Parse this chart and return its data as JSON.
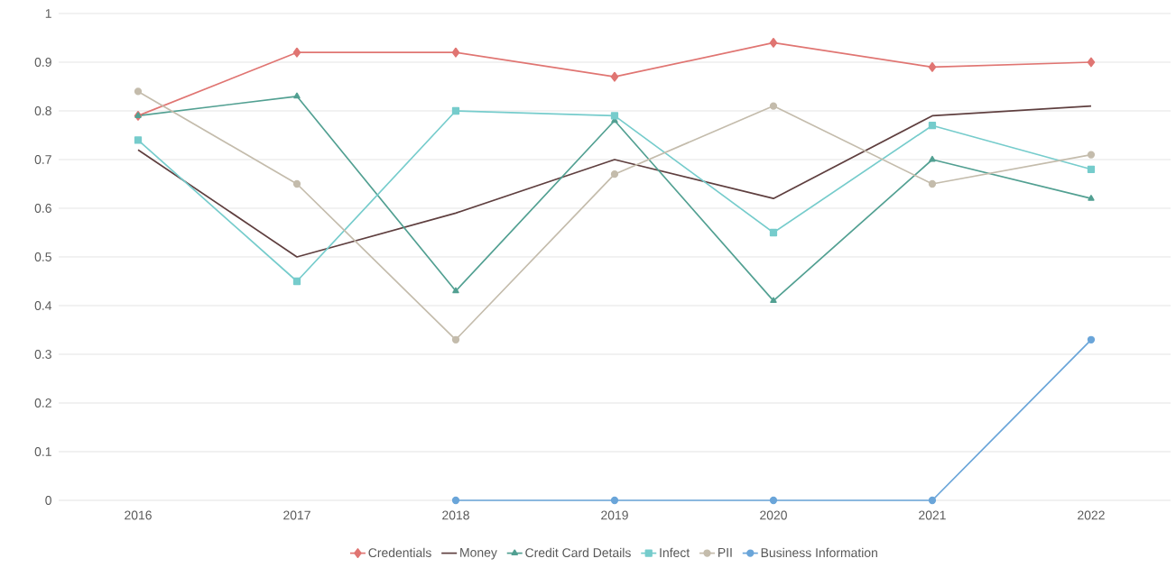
{
  "chart_data": {
    "type": "line",
    "categories": [
      "2016",
      "2017",
      "2018",
      "2019",
      "2020",
      "2021",
      "2022"
    ],
    "series": [
      {
        "name": "Credentials",
        "color": "#e07572",
        "marker": "diamond",
        "values": [
          0.79,
          0.92,
          0.92,
          0.87,
          0.94,
          0.89,
          0.9
        ]
      },
      {
        "name": "Money",
        "color": "#5f3f3f",
        "marker": "none",
        "values": [
          0.72,
          0.5,
          0.59,
          0.7,
          0.62,
          0.79,
          0.81
        ]
      },
      {
        "name": "Credit Card Details",
        "color": "#52a092",
        "marker": "triangle",
        "values": [
          0.79,
          0.83,
          0.43,
          0.78,
          0.41,
          0.7,
          0.62
        ]
      },
      {
        "name": "Infect",
        "color": "#76cccc",
        "marker": "square",
        "values": [
          0.74,
          0.45,
          0.8,
          0.79,
          0.55,
          0.77,
          0.68
        ]
      },
      {
        "name": "PII",
        "color": "#c4bcac",
        "marker": "circle",
        "values": [
          0.84,
          0.65,
          0.33,
          0.67,
          0.81,
          0.65,
          0.71
        ]
      },
      {
        "name": "Business Information",
        "color": "#6aa5d9",
        "marker": "circle",
        "values": [
          null,
          null,
          0,
          0,
          0,
          0,
          0.33
        ]
      }
    ],
    "ylim": [
      0,
      1
    ],
    "yticks": [
      0,
      0.1,
      0.2,
      0.3,
      0.4,
      0.5,
      0.6,
      0.7,
      0.8,
      0.9,
      1
    ],
    "grid": "y",
    "legend": "bottom"
  }
}
